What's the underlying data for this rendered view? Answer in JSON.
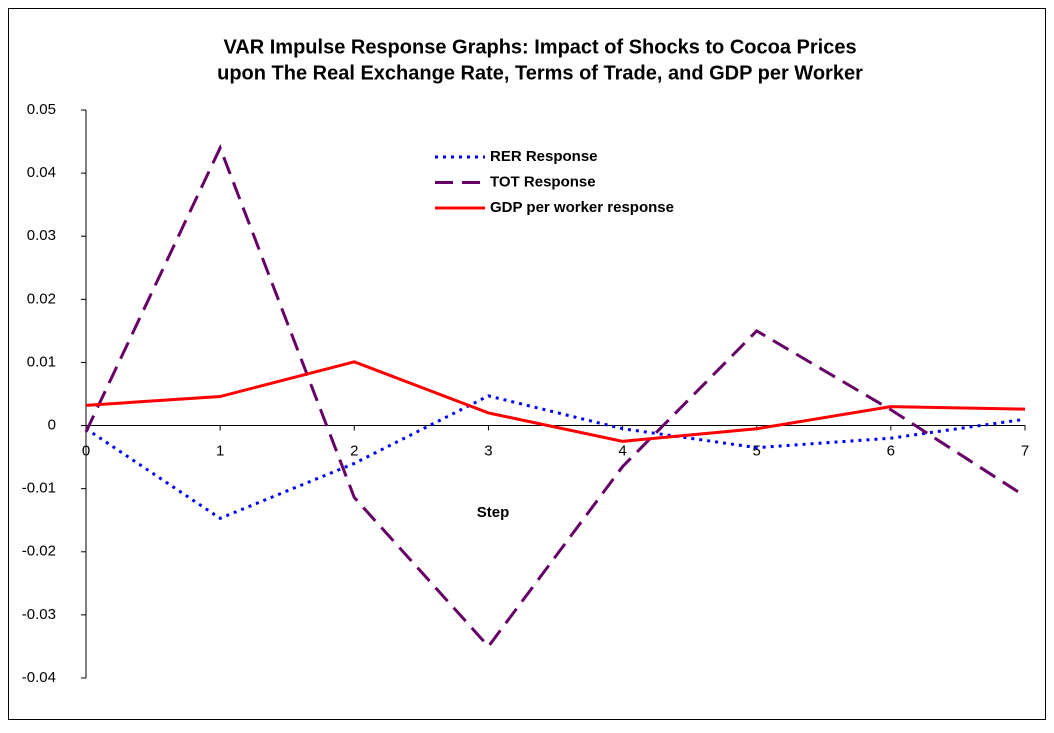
{
  "chart_data": {
    "type": "line",
    "title": [
      "VAR Impulse Response Graphs: Impact of Shocks to Cocoa Prices",
      "upon The Real Exchange Rate, Terms of Trade, and GDP per Worker"
    ],
    "x_label": "Step",
    "x": [
      0,
      1,
      2,
      3,
      4,
      5,
      6,
      7
    ],
    "xlim": [
      0,
      7
    ],
    "xticks": [
      0,
      1,
      2,
      3,
      4,
      5,
      6,
      7
    ],
    "ylim": [
      -0.04,
      0.05
    ],
    "yticks": [
      -0.04,
      -0.03,
      -0.02,
      -0.01,
      0,
      0.01,
      0.02,
      0.03,
      0.04,
      0.05
    ],
    "grid": false,
    "legend": "upper center",
    "series": [
      {
        "name": "RER Response",
        "color": "#0000ff",
        "style": "dotted",
        "values": [
          -0.0005,
          -0.0147,
          -0.006,
          0.0047,
          -0.0005,
          -0.0035,
          -0.002,
          0.001
        ]
      },
      {
        "name": "TOT Response",
        "color": "#660066",
        "style": "dashed",
        "values": [
          -0.001,
          0.044,
          -0.0114,
          -0.035,
          -0.0065,
          0.015,
          0.0025,
          -0.0112
        ]
      },
      {
        "name": "GDP per worker response",
        "color": "#ff0000",
        "style": "solid",
        "values": [
          0.0032,
          0.0046,
          0.0101,
          0.002,
          -0.0025,
          -0.0005,
          0.003,
          0.0026
        ]
      }
    ]
  }
}
